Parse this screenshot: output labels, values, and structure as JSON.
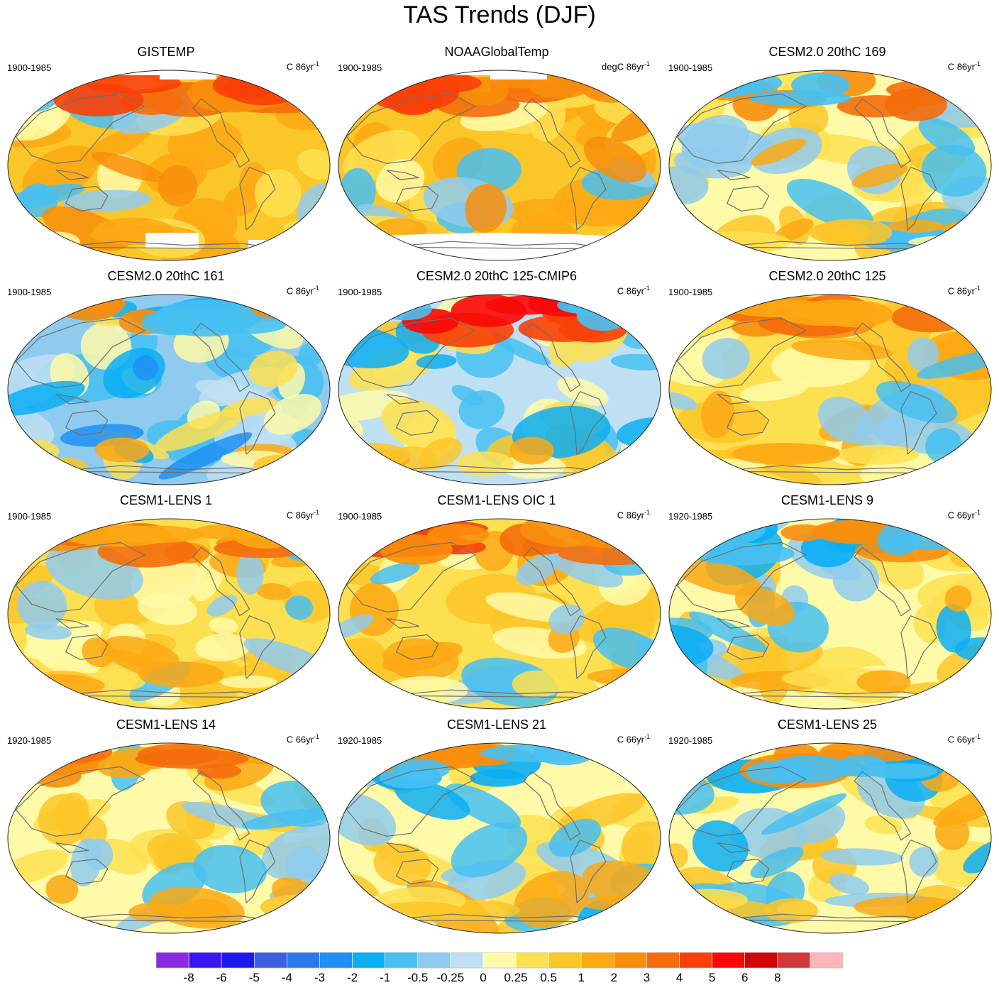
{
  "figure": {
    "title": "TAS Trends (DJF)"
  },
  "panels": [
    {
      "title": "GISTEMP",
      "period": "1900-1985",
      "units": "C 86yr",
      "units_exp": "-1",
      "style": "warm_obs",
      "missing_north": true,
      "missing_south": "partial"
    },
    {
      "title": "NOAAGlobalTemp",
      "period": "1900-1985",
      "units": "degC 86yr",
      "units_exp": "-1",
      "style": "warm_obs",
      "missing_north": true,
      "missing_south": "full"
    },
    {
      "title": "CESM2.0 20thC 169",
      "period": "1900-1985",
      "units": "C 86yr",
      "units_exp": "-1",
      "style": "mixed_cool_pacific"
    },
    {
      "title": "CESM2.0 20thC 161",
      "period": "1900-1985",
      "units": "C 86yr",
      "units_exp": "-1",
      "style": "cool"
    },
    {
      "title": "CESM2.0 20thC 125-CMIP6",
      "period": "1900-1985",
      "units": "C 86yr",
      "units_exp": "-1",
      "style": "cool_hot_siberia"
    },
    {
      "title": "CESM2.0 20thC 125",
      "period": "1900-1985",
      "units": "C 86yr",
      "units_exp": "-1",
      "style": "warm_model"
    },
    {
      "title": "CESM1-LENS 1",
      "period": "1900-1985",
      "units": "C 86yr",
      "units_exp": "-1",
      "style": "warm_model"
    },
    {
      "title": "CESM1-LENS OIC 1",
      "period": "1900-1985",
      "units": "C 86yr",
      "units_exp": "-1",
      "style": "warm_model_hot_north"
    },
    {
      "title": "CESM1-LENS 9",
      "period": "1920-1985",
      "units": "C 66yr",
      "units_exp": "-1",
      "style": "mixed_cool_asia"
    },
    {
      "title": "CESM1-LENS 14",
      "period": "1920-1985",
      "units": "C 66yr",
      "units_exp": "-1",
      "style": "mixed_warm_north"
    },
    {
      "title": "CESM1-LENS 21",
      "period": "1920-1985",
      "units": "C 66yr",
      "units_exp": "-1",
      "style": "mixed_cool_asia"
    },
    {
      "title": "CESM1-LENS 25",
      "period": "1920-1985",
      "units": "C 66yr",
      "units_exp": "-1",
      "style": "mixed_cool_asia"
    }
  ],
  "colorbar": {
    "colors": [
      "#8a2be2",
      "#3a16f2",
      "#1a1aee",
      "#3c5fe0",
      "#2a78ec",
      "#1e90f5",
      "#0aaef5",
      "#47c0f2",
      "#8fcbef",
      "#bfe0f2",
      "#fffaa8",
      "#fde050",
      "#fbc628",
      "#fba813",
      "#f88e0c",
      "#f56d0b",
      "#fa3f08",
      "#f80808",
      "#d10505",
      "#d13838",
      "#ffb6b9"
    ],
    "labels": [
      "-8",
      "-6",
      "-5",
      "-4",
      "-3",
      "-2",
      "-1",
      "-0.5",
      "-0.25",
      "0",
      "0.25",
      "0.5",
      "1",
      "2",
      "3",
      "4",
      "5",
      "6",
      "8"
    ]
  }
}
